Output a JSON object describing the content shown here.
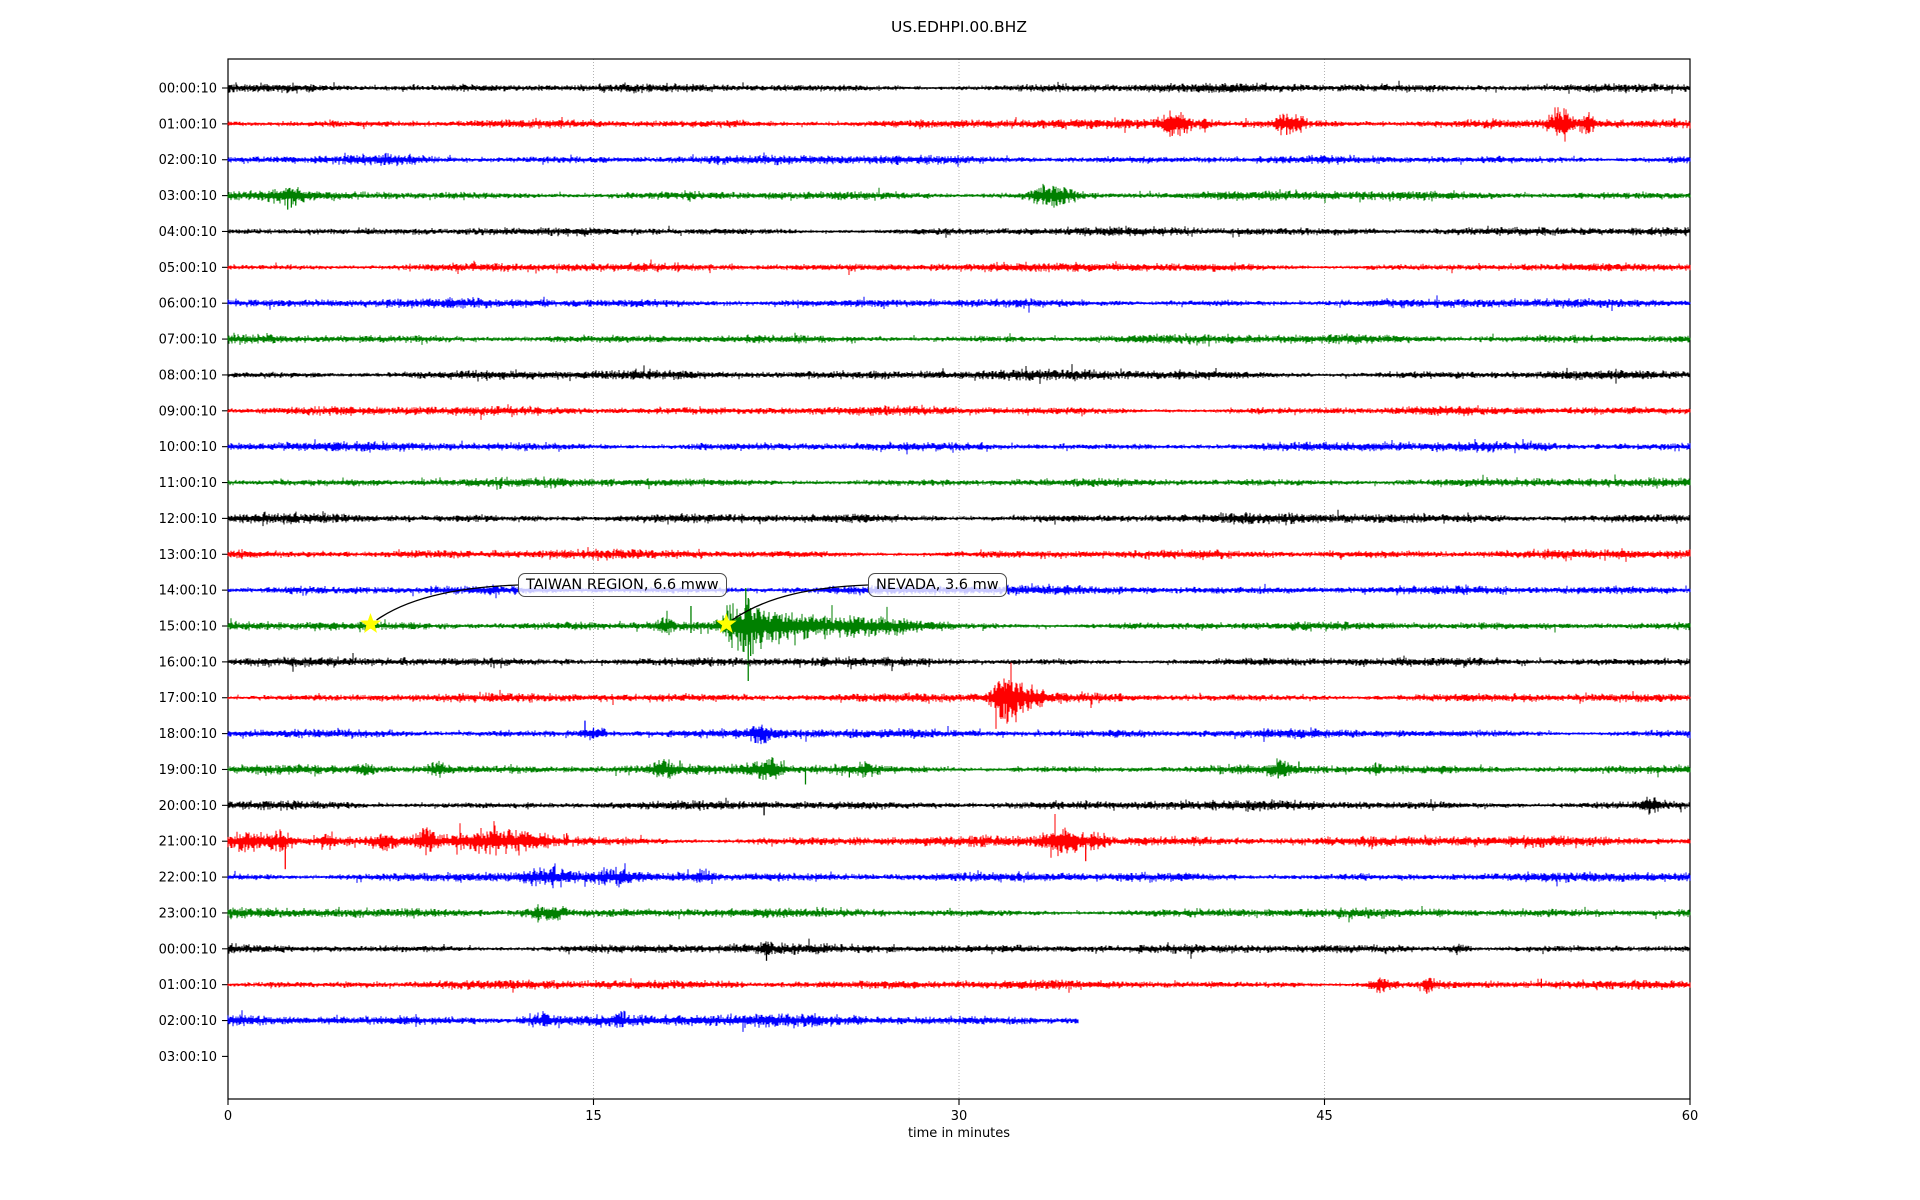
{
  "title": "US.EDHPI.00.BHZ",
  "chart_data": {
    "type": "line",
    "subtype": "seismogram-dayplot-helicorder",
    "title": "US.EDHPI.00.BHZ",
    "xlabel": "time in minutes",
    "xlim": [
      0,
      60
    ],
    "xticks": [
      "0",
      "15",
      "30",
      "45",
      "60"
    ],
    "xtick_values": [
      0,
      15,
      30,
      45,
      60
    ],
    "grid": {
      "vertical_minutes": [
        15,
        30,
        45
      ],
      "style": "dotted",
      "color": "#aaaaaa"
    },
    "trace_color_cycle": [
      "#000000",
      "#ff0000",
      "#0000ff",
      "#008000"
    ],
    "marker_color": "#ffff00",
    "annotations": [
      {
        "label": "TAIWAN REGION, 6.6 mww",
        "row_index": 15,
        "star_minute": 5.85
      },
      {
        "label": "NEVADA, 3.6 mw",
        "row_index": 15,
        "star_minute": 20.45
      }
    ],
    "rows": [
      {
        "label": "00:00:10",
        "color": "#000000",
        "amp": 3.3,
        "bursts": [],
        "spikes": []
      },
      {
        "label": "01:00:10",
        "color": "#ff0000",
        "amp": 3.4,
        "bursts": [
          {
            "t": 38.7,
            "w": 0.3,
            "a": 7
          },
          {
            "t": 39.2,
            "w": 0.2,
            "a": 5
          },
          {
            "t": 40.1,
            "w": 0.15,
            "a": 4
          },
          {
            "t": 43.4,
            "w": 0.25,
            "a": 6
          },
          {
            "t": 44.0,
            "w": 0.15,
            "a": 4
          },
          {
            "t": 54.7,
            "w": 0.35,
            "a": 9
          },
          {
            "t": 55.8,
            "w": 0.2,
            "a": 7
          }
        ],
        "spikes": [
          {
            "t": 38.75,
            "u": 4,
            "d": 12
          },
          {
            "t": 39.25,
            "u": 4,
            "d": 9
          },
          {
            "t": 43.45,
            "u": 5,
            "d": 11
          },
          {
            "t": 54.65,
            "u": 10,
            "d": 9
          },
          {
            "t": 55.85,
            "u": 9,
            "d": 7
          }
        ]
      },
      {
        "label": "02:00:10",
        "color": "#0000ff",
        "amp": 3.3,
        "bursts": [
          {
            "t": 6.9,
            "w": 1.0,
            "a": 1.6
          }
        ],
        "spikes": []
      },
      {
        "label": "03:00:10",
        "color": "#008000",
        "amp": 3.3,
        "bursts": [
          {
            "t": 2.5,
            "w": 0.4,
            "a": 4
          },
          {
            "t": 33.6,
            "w": 0.5,
            "a": 6
          },
          {
            "t": 34.3,
            "w": 0.3,
            "a": 4
          }
        ],
        "spikes": [
          {
            "t": 2.3,
            "u": 5,
            "d": 4
          },
          {
            "t": 2.45,
            "u": 6,
            "d": 14
          },
          {
            "t": 2.6,
            "u": 4,
            "d": 12
          },
          {
            "t": 2.78,
            "u": 3,
            "d": 10
          },
          {
            "t": 33.5,
            "u": 9,
            "d": 4
          },
          {
            "t": 33.7,
            "u": 7,
            "d": 7
          },
          {
            "t": 33.9,
            "u": 6,
            "d": 5
          }
        ]
      },
      {
        "label": "04:00:10",
        "color": "#000000",
        "amp": 3.1,
        "bursts": [],
        "spikes": []
      },
      {
        "label": "05:00:10",
        "color": "#ff0000",
        "amp": 3.3,
        "bursts": [],
        "spikes": []
      },
      {
        "label": "06:00:10",
        "color": "#0000ff",
        "amp": 3.3,
        "bursts": [],
        "spikes": []
      },
      {
        "label": "07:00:10",
        "color": "#008000",
        "amp": 3.3,
        "bursts": [],
        "spikes": []
      },
      {
        "label": "08:00:10",
        "color": "#000000",
        "amp": 3.6,
        "bursts": [],
        "spikes": []
      },
      {
        "label": "09:00:10",
        "color": "#ff0000",
        "amp": 3.3,
        "bursts": [],
        "spikes": []
      },
      {
        "label": "10:00:10",
        "color": "#0000ff",
        "amp": 3.3,
        "bursts": [],
        "spikes": []
      },
      {
        "label": "11:00:10",
        "color": "#008000",
        "amp": 3.2,
        "bursts": [],
        "spikes": []
      },
      {
        "label": "12:00:10",
        "color": "#000000",
        "amp": 3.6,
        "bursts": [],
        "spikes": []
      },
      {
        "label": "13:00:10",
        "color": "#ff0000",
        "amp": 3.4,
        "bursts": [],
        "spikes": []
      },
      {
        "label": "14:00:10",
        "color": "#0000ff",
        "amp": 3.4,
        "bursts": [],
        "spikes": []
      },
      {
        "label": "15:00:10",
        "color": "#008000",
        "amp": 3.3,
        "bursts": [
          {
            "t": 17.9,
            "w": 0.3,
            "a": 4
          },
          {
            "t": 20.7,
            "w": 0.3,
            "a": 8
          },
          {
            "t": 21.35,
            "w": 0.45,
            "a": 9
          },
          {
            "t": 22.2,
            "w": 0.9,
            "a": 5
          },
          {
            "t": 24.0,
            "w": 1.8,
            "a": 4
          },
          {
            "t": 26.5,
            "w": 1.5,
            "a": 3.6
          }
        ],
        "spikes": [
          {
            "t": 19.0,
            "u": 20,
            "d": 7
          },
          {
            "t": 20.85,
            "u": 10,
            "d": 8
          },
          {
            "t": 21.25,
            "u": 38,
            "d": 20
          },
          {
            "t": 21.35,
            "u": 28,
            "d": 55
          },
          {
            "t": 21.45,
            "u": 18,
            "d": 30
          },
          {
            "t": 21.6,
            "u": 12,
            "d": 14
          },
          {
            "t": 21.8,
            "u": 8,
            "d": 9
          }
        ]
      },
      {
        "label": "16:00:10",
        "color": "#000000",
        "amp": 3.3,
        "bursts": [],
        "spikes": []
      },
      {
        "label": "17:00:10",
        "color": "#ff0000",
        "amp": 3.4,
        "bursts": [
          {
            "t": 31.6,
            "w": 0.2,
            "a": 8
          },
          {
            "t": 31.95,
            "w": 0.3,
            "a": 11
          },
          {
            "t": 32.4,
            "w": 0.3,
            "a": 6
          },
          {
            "t": 33.1,
            "w": 0.4,
            "a": 4
          }
        ],
        "spikes": [
          {
            "t": 31.6,
            "u": 10,
            "d": 8
          },
          {
            "t": 31.9,
            "u": 15,
            "d": 16
          },
          {
            "t": 32.05,
            "u": 12,
            "d": 14
          },
          {
            "t": 32.3,
            "u": 8,
            "d": 10
          }
        ]
      },
      {
        "label": "18:00:10",
        "color": "#0000ff",
        "amp": 3.4,
        "bursts": [
          {
            "t": 14.85,
            "w": 0.25,
            "a": 4
          },
          {
            "t": 15.35,
            "w": 0.12,
            "a": 3
          },
          {
            "t": 21.9,
            "w": 0.3,
            "a": 5.5
          }
        ],
        "spikes": [
          {
            "t": 14.65,
            "u": 13,
            "d": 4
          },
          {
            "t": 15.0,
            "u": 6,
            "d": 5
          }
        ]
      },
      {
        "label": "19:00:10",
        "color": "#008000",
        "amp": 3.4,
        "bursts": [
          {
            "t": 5.6,
            "w": 0.25,
            "a": 3
          },
          {
            "t": 8.6,
            "w": 0.3,
            "a": 4
          },
          {
            "t": 17.9,
            "w": 0.35,
            "a": 4.5
          },
          {
            "t": 21.9,
            "w": 0.5,
            "a": 4
          },
          {
            "t": 22.4,
            "w": 0.25,
            "a": 4
          },
          {
            "t": 26.2,
            "w": 0.25,
            "a": 3
          },
          {
            "t": 43.2,
            "w": 0.3,
            "a": 6
          },
          {
            "t": 47.1,
            "w": 0.12,
            "a": 3
          }
        ],
        "spikes": [
          {
            "t": 18.55,
            "u": 9,
            "d": 3
          },
          {
            "t": 23.7,
            "u": 3,
            "d": 15
          },
          {
            "t": 25.5,
            "u": 2,
            "d": 8
          },
          {
            "t": 43.1,
            "u": 7,
            "d": 9
          },
          {
            "t": 43.35,
            "u": 6,
            "d": 7
          },
          {
            "t": 43.95,
            "u": 8,
            "d": 3
          },
          {
            "t": 47.1,
            "u": 7,
            "d": 2
          }
        ]
      },
      {
        "label": "20:00:10",
        "color": "#000000",
        "amp": 3.4,
        "bursts": [
          {
            "t": 58.4,
            "w": 0.25,
            "a": 4.5
          }
        ],
        "spikes": [
          {
            "t": 22.0,
            "u": 3,
            "d": 10
          },
          {
            "t": 58.35,
            "u": 6,
            "d": 4
          }
        ]
      },
      {
        "label": "21:00:10",
        "color": "#ff0000",
        "amp": 4.0,
        "bursts": [
          {
            "t": 0.9,
            "w": 0.5,
            "a": 5.5
          },
          {
            "t": 2.1,
            "w": 0.35,
            "a": 6
          },
          {
            "t": 4.1,
            "w": 0.25,
            "a": 4.5
          },
          {
            "t": 6.4,
            "w": 0.25,
            "a": 4.5
          },
          {
            "t": 8.15,
            "w": 0.3,
            "a": 5
          },
          {
            "t": 10.6,
            "w": 0.9,
            "a": 4.5
          },
          {
            "t": 12.1,
            "w": 0.9,
            "a": 4.2
          },
          {
            "t": 33.95,
            "w": 0.35,
            "a": 6.5
          },
          {
            "t": 34.55,
            "w": 0.35,
            "a": 7.5
          },
          {
            "t": 35.6,
            "w": 0.3,
            "a": 4
          }
        ],
        "spikes": [
          {
            "t": 2.35,
            "u": 4,
            "d": 28
          },
          {
            "t": 8.0,
            "u": 13,
            "d": 5
          },
          {
            "t": 13.9,
            "u": 8,
            "d": 4
          },
          {
            "t": 35.2,
            "u": 3,
            "d": 20
          }
        ]
      },
      {
        "label": "22:00:10",
        "color": "#0000ff",
        "amp": 3.7,
        "bursts": [
          {
            "t": 13.0,
            "w": 0.7,
            "a": 3.4
          },
          {
            "t": 16.0,
            "w": 0.5,
            "a": 3.2
          },
          {
            "t": 19.5,
            "w": 0.4,
            "a": 3.2
          }
        ],
        "spikes": []
      },
      {
        "label": "23:00:10",
        "color": "#008000",
        "amp": 3.5,
        "bursts": [
          {
            "t": 12.8,
            "w": 0.5,
            "a": 3.6
          },
          {
            "t": 13.5,
            "w": 0.2,
            "a": 3
          }
        ],
        "spikes": [
          {
            "t": 12.9,
            "u": 6,
            "d": 2
          }
        ]
      },
      {
        "label": "00:00:10",
        "color": "#000000",
        "amp": 3.4,
        "bursts": [
          {
            "t": 22.1,
            "w": 0.15,
            "a": 3
          },
          {
            "t": 50.6,
            "w": 0.3,
            "a": 2.6
          }
        ],
        "spikes": [
          {
            "t": 22.1,
            "u": 3,
            "d": 12
          }
        ]
      },
      {
        "label": "01:00:10",
        "color": "#ff0000",
        "amp": 3.4,
        "bursts": [
          {
            "t": 47.3,
            "w": 0.35,
            "a": 4.5
          },
          {
            "t": 49.3,
            "w": 0.2,
            "a": 4
          }
        ],
        "spikes": [
          {
            "t": 49.2,
            "u": 3,
            "d": 9
          },
          {
            "t": 53.9,
            "u": 6,
            "d": 3
          }
        ]
      },
      {
        "label": "02:00:10",
        "color": "#0000ff",
        "amp": 4.3,
        "duration_min": 34.9,
        "bursts": [
          {
            "t": 12.9,
            "w": 0.4,
            "a": 3
          },
          {
            "t": 16.1,
            "w": 0.15,
            "a": 4
          }
        ],
        "spikes": [
          {
            "t": 16.05,
            "u": 7,
            "d": 3
          }
        ]
      },
      {
        "label": "03:00:10",
        "color": "#008000",
        "amp": 0,
        "empty": true,
        "bursts": [],
        "spikes": []
      }
    ]
  }
}
